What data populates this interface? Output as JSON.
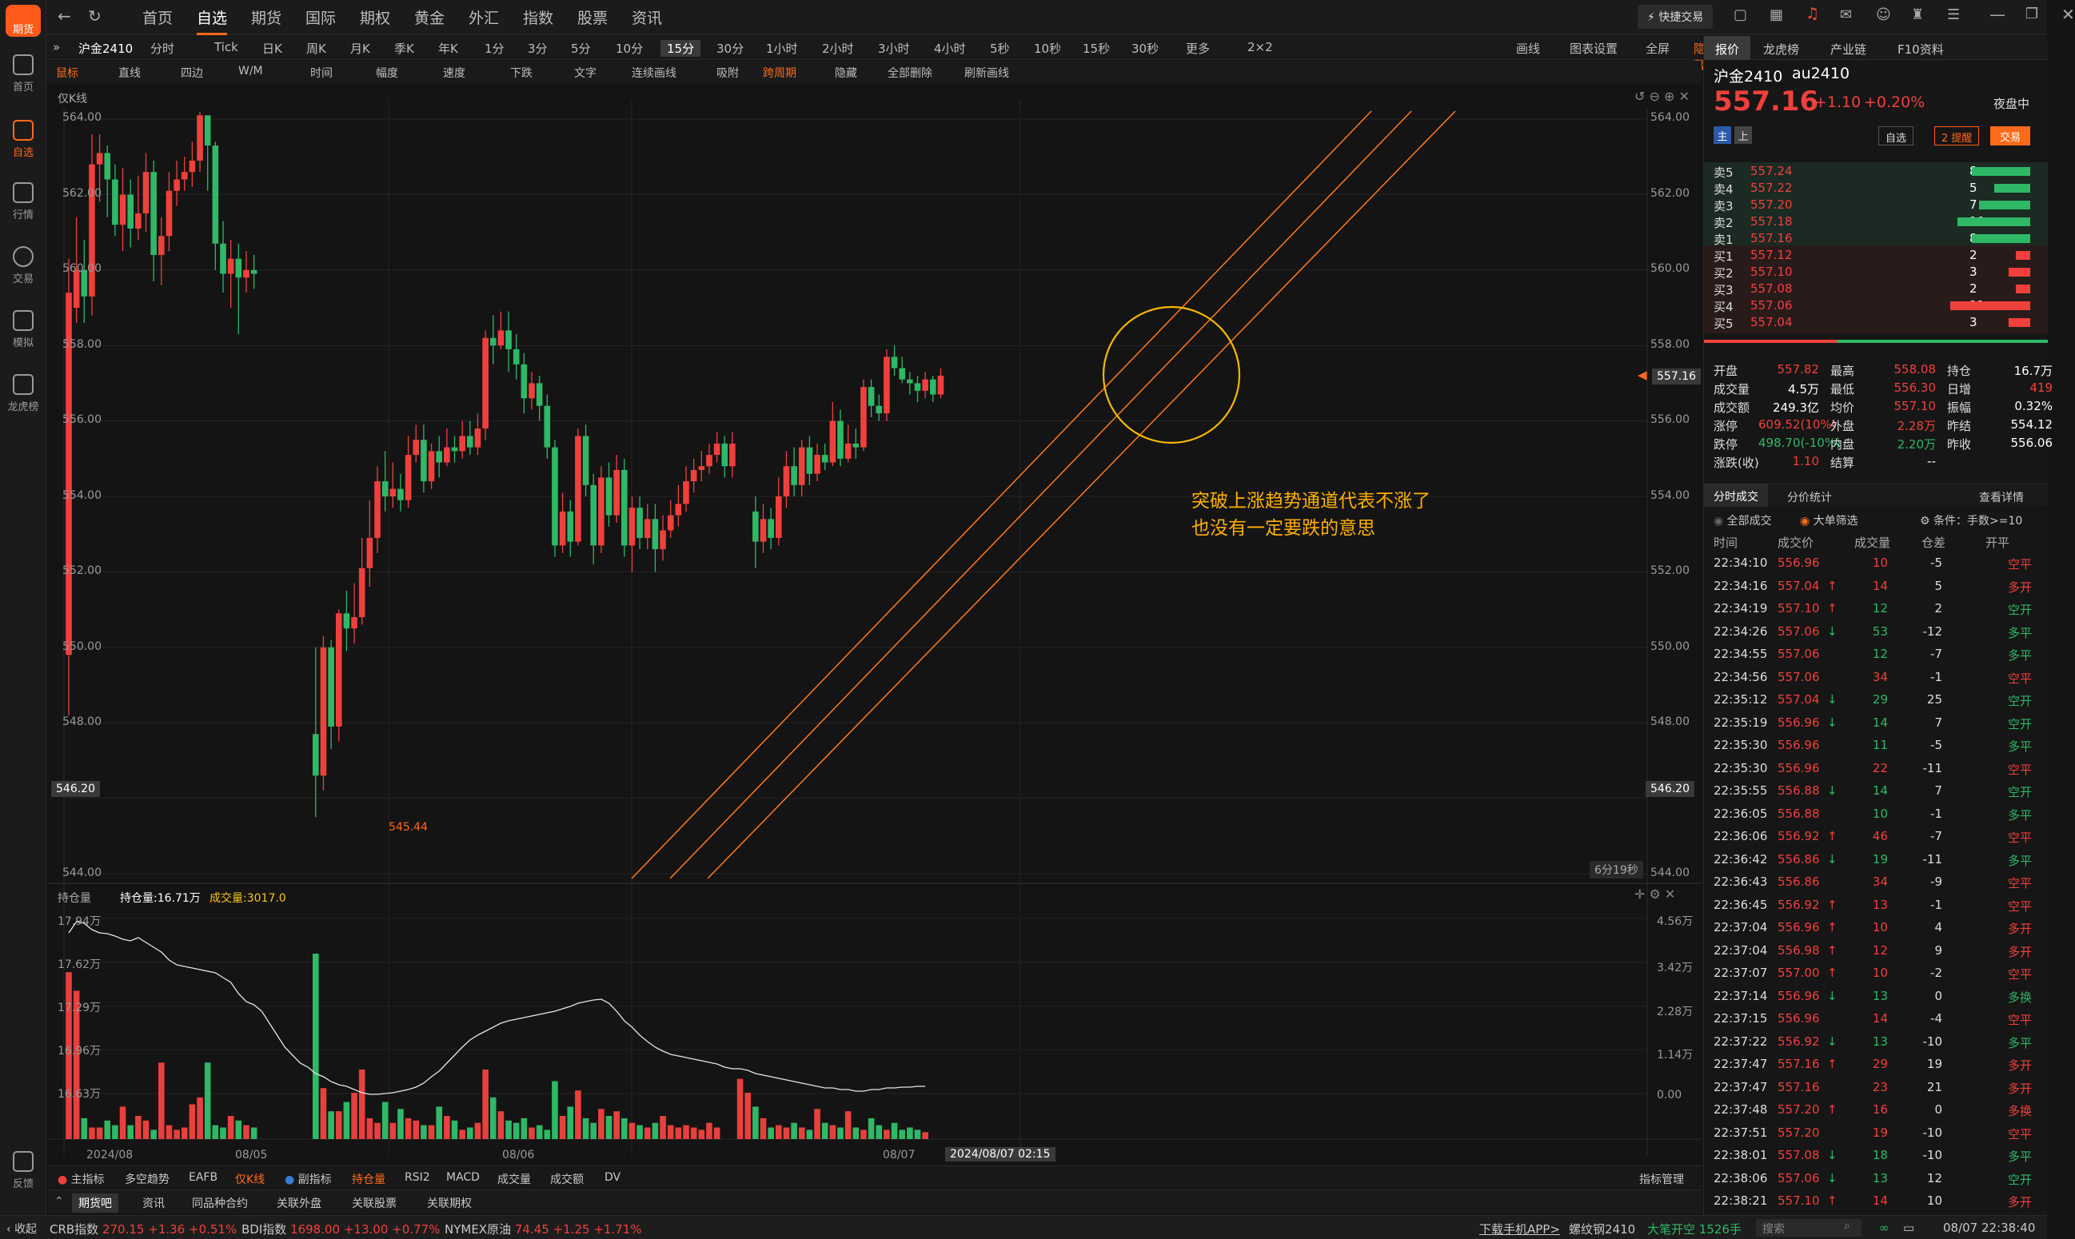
{
  "app": {
    "logo_text": "期货"
  },
  "left_rail": [
    {
      "label": "首页",
      "icon": "grid-icon"
    },
    {
      "label": "自选",
      "icon": "plus-square-icon"
    },
    {
      "label": "行情",
      "icon": "chart-icon"
    },
    {
      "label": "交易",
      "icon": "yen-icon"
    },
    {
      "label": "模拟",
      "icon": "gamepad-icon"
    },
    {
      "label": "龙虎榜",
      "icon": "stack-icon"
    },
    {
      "label": "反馈",
      "icon": "chat-icon"
    },
    {
      "label": "收起",
      "icon": "collapse-icon"
    }
  ],
  "top_nav": {
    "tabs": [
      "首页",
      "自选",
      "期货",
      "国际",
      "期权",
      "黄金",
      "外汇",
      "指数",
      "股票",
      "资讯"
    ],
    "active": "自选",
    "quick_trade": "快捷交易"
  },
  "period_bar": {
    "symbol": "沪金2410",
    "periods": [
      "分时",
      "Tick",
      "日K",
      "周K",
      "月K",
      "季K",
      "年K",
      "1分",
      "3分",
      "5分",
      "10分",
      "15分",
      "30分",
      "1小时",
      "2小时",
      "3小时",
      "4小时",
      "5秒",
      "10秒",
      "15秒",
      "30秒",
      "更多",
      "2×2"
    ],
    "active": "15分",
    "right_tools": [
      "画线",
      "图表设置",
      "全屏",
      "隐藏"
    ]
  },
  "draw_tools": [
    "鼠标",
    "直线",
    "四边",
    "W/M",
    "时间",
    "幅度",
    "速度",
    "下跌",
    "文字",
    "连续画线",
    "吸附",
    "跨周期",
    "隐藏",
    "全部删除",
    "刷新画线"
  ],
  "chart": {
    "indicator_label": "仅K线",
    "countdown": "6分19秒",
    "current_price_flag": "557.16",
    "crosshair_price": "546.20",
    "low_label": "545.44",
    "annotation_line1": "突破上涨趋势通道代表不涨了",
    "annotation_line2": "也没有一定要跌的意思",
    "y_ticks": [
      "564.00",
      "562.00",
      "560.00",
      "558.00",
      "556.00",
      "554.00",
      "552.00",
      "550.00",
      "548.00",
      "544.00"
    ],
    "x_labels": [
      "2024/08",
      "08/05",
      "08/06",
      "08/07"
    ],
    "x_crosshair": "2024/08/07 02:15"
  },
  "sub_chart": {
    "indicator_label": "持仓量",
    "oi_label": "持仓量:16.71万",
    "vol_label": "成交量:3017.0",
    "left_ticks": [
      "17.94万",
      "17.62万",
      "17.29万",
      "16.96万",
      "16.63万"
    ],
    "right_ticks": [
      "4.56万",
      "3.42万",
      "2.28万",
      "1.14万",
      "0.00"
    ]
  },
  "indicator_bar": [
    "主指标",
    "多空趋势",
    "EAFB",
    "仅K线",
    "副指标",
    "持仓量",
    "RSI2",
    "MACD",
    "成交量",
    "成交额",
    "DV",
    "指标管理"
  ],
  "news_bar": [
    "期货吧",
    "资讯",
    "同品种合约",
    "关联外盘",
    "关联股票",
    "关联期权"
  ],
  "right_panel": {
    "tabs": [
      "报价",
      "龙虎榜",
      "产业链",
      "F10资料"
    ],
    "symbol": "沪金2410",
    "code": "au2410",
    "price": "557.16",
    "change": "+1.10",
    "change_pct": "+0.20%",
    "session": "夜盘中",
    "main_badge": "主",
    "up_badge": "上",
    "btn_watch": "自选",
    "btn_alert": "2 提醒",
    "btn_trade": "交易",
    "asks": [
      {
        "label": "卖5",
        "price": "557.24",
        "qty": "8"
      },
      {
        "label": "卖4",
        "price": "557.22",
        "qty": "5"
      },
      {
        "label": "卖3",
        "price": "557.20",
        "qty": "7"
      },
      {
        "label": "卖2",
        "price": "557.18",
        "qty": "10"
      },
      {
        "label": "卖1",
        "price": "557.16",
        "qty": "8"
      }
    ],
    "bids": [
      {
        "label": "买1",
        "price": "557.12",
        "qty": "2"
      },
      {
        "label": "买2",
        "price": "557.10",
        "qty": "3"
      },
      {
        "label": "买3",
        "price": "557.08",
        "qty": "2"
      },
      {
        "label": "买4",
        "price": "557.06",
        "qty": "11"
      },
      {
        "label": "买5",
        "price": "557.04",
        "qty": "3"
      }
    ],
    "stats": [
      [
        [
          "开盘",
          "557.82",
          "red"
        ],
        [
          "最高",
          "558.08",
          "red"
        ],
        [
          "持仓",
          "16.7万",
          "white"
        ]
      ],
      [
        [
          "成交量",
          "4.5万",
          "white"
        ],
        [
          "最低",
          "556.30",
          "red"
        ],
        [
          "日增",
          "419",
          "red"
        ]
      ],
      [
        [
          "成交额",
          "249.3亿",
          "white"
        ],
        [
          "均价",
          "557.10",
          "red"
        ],
        [
          "振幅",
          "0.32%",
          "white"
        ]
      ],
      [
        [
          "涨停",
          "609.52(10%)",
          "red"
        ],
        [
          "外盘",
          "2.28万",
          "red"
        ],
        [
          "昨结",
          "554.12",
          "white"
        ]
      ],
      [
        [
          "跌停",
          "498.70(-10%)",
          "green"
        ],
        [
          "内盘",
          "2.20万",
          "green"
        ],
        [
          "昨收",
          "556.06",
          "white"
        ]
      ],
      [
        [
          "涨跌(收)",
          "1.10",
          "red"
        ],
        [
          "结算",
          "--",
          "white"
        ]
      ]
    ],
    "trade_tabs": [
      "分时成交",
      "分价统计"
    ],
    "more": "查看详情",
    "filter_all": "全部成交",
    "filter_big": "大单筛选",
    "filter_cond": "条件：手数>=10",
    "trade_headers": [
      "时间",
      "成交价",
      "成交量",
      "仓差",
      "开平"
    ],
    "trades": [
      [
        "22:34:10",
        "556.96",
        "",
        "10",
        "-5",
        "空平",
        "red"
      ],
      [
        "22:34:16",
        "557.04",
        "up",
        "14",
        "5",
        "多开",
        "red"
      ],
      [
        "22:34:19",
        "557.10",
        "up",
        "12",
        "2",
        "空开",
        "green"
      ],
      [
        "22:34:26",
        "557.06",
        "down",
        "53",
        "-12",
        "多平",
        "green"
      ],
      [
        "22:34:55",
        "557.06",
        "",
        "12",
        "-7",
        "多平",
        "green"
      ],
      [
        "22:34:56",
        "557.06",
        "",
        "34",
        "-1",
        "空平",
        "red"
      ],
      [
        "22:35:12",
        "557.04",
        "down",
        "29",
        "25",
        "空开",
        "green"
      ],
      [
        "22:35:19",
        "556.96",
        "down",
        "14",
        "7",
        "空开",
        "green"
      ],
      [
        "22:35:30",
        "556.96",
        "",
        "11",
        "-5",
        "多平",
        "green"
      ],
      [
        "22:35:30",
        "556.96",
        "",
        "22",
        "-11",
        "空平",
        "red"
      ],
      [
        "22:35:55",
        "556.88",
        "down",
        "14",
        "7",
        "空开",
        "green"
      ],
      [
        "22:36:05",
        "556.88",
        "",
        "10",
        "-1",
        "多平",
        "green"
      ],
      [
        "22:36:06",
        "556.92",
        "up",
        "46",
        "-7",
        "空平",
        "red"
      ],
      [
        "22:36:42",
        "556.86",
        "down",
        "19",
        "-11",
        "多平",
        "green"
      ],
      [
        "22:36:43",
        "556.86",
        "",
        "34",
        "-9",
        "空平",
        "red"
      ],
      [
        "22:36:45",
        "556.92",
        "up",
        "13",
        "-1",
        "空平",
        "red"
      ],
      [
        "22:37:04",
        "556.96",
        "up",
        "10",
        "4",
        "多开",
        "red"
      ],
      [
        "22:37:04",
        "556.98",
        "up",
        "12",
        "9",
        "多开",
        "red"
      ],
      [
        "22:37:07",
        "557.00",
        "up",
        "10",
        "-2",
        "空平",
        "red"
      ],
      [
        "22:37:14",
        "556.96",
        "down",
        "13",
        "0",
        "多换",
        "green"
      ],
      [
        "22:37:15",
        "556.96",
        "",
        "14",
        "-4",
        "空平",
        "red"
      ],
      [
        "22:37:22",
        "556.92",
        "down",
        "13",
        "-10",
        "多平",
        "green"
      ],
      [
        "22:37:47",
        "557.16",
        "up",
        "29",
        "19",
        "多开",
        "red"
      ],
      [
        "22:37:47",
        "557.16",
        "",
        "23",
        "21",
        "多开",
        "red"
      ],
      [
        "22:37:48",
        "557.20",
        "up",
        "16",
        "0",
        "多换",
        "red"
      ],
      [
        "22:37:51",
        "557.20",
        "",
        "19",
        "-10",
        "空平",
        "red"
      ],
      [
        "22:38:01",
        "557.08",
        "down",
        "18",
        "-10",
        "多平",
        "green"
      ],
      [
        "22:38:06",
        "557.06",
        "down",
        "13",
        "12",
        "空开",
        "green"
      ],
      [
        "22:38:21",
        "557.10",
        "up",
        "14",
        "10",
        "多开",
        "red"
      ]
    ]
  },
  "status_bar": {
    "items": [
      {
        "name": "CRB指数",
        "value": "270.15",
        "chg": "+1.36",
        "pct": "+0.51%"
      },
      {
        "name": "BDI指数",
        "value": "1698.00",
        "chg": "+13.00",
        "pct": "+0.77%"
      },
      {
        "name": "NYMEX原油",
        "value": "74.45",
        "chg": "+1.25",
        "pct": "+1.71%"
      }
    ],
    "download": "下载手机APP>",
    "news_symbol": "螺纹钢2410",
    "news_text": "大笔开空 1526手",
    "search_placeholder": "搜索",
    "datetime": "08/07 22:38:40",
    "collapse": "收起"
  },
  "colors": {
    "up": "#f0403c",
    "down": "#2fb866",
    "accent": "#ff6a1a",
    "channel": "#ff7a1a",
    "highlight": "#f5b800"
  }
}
